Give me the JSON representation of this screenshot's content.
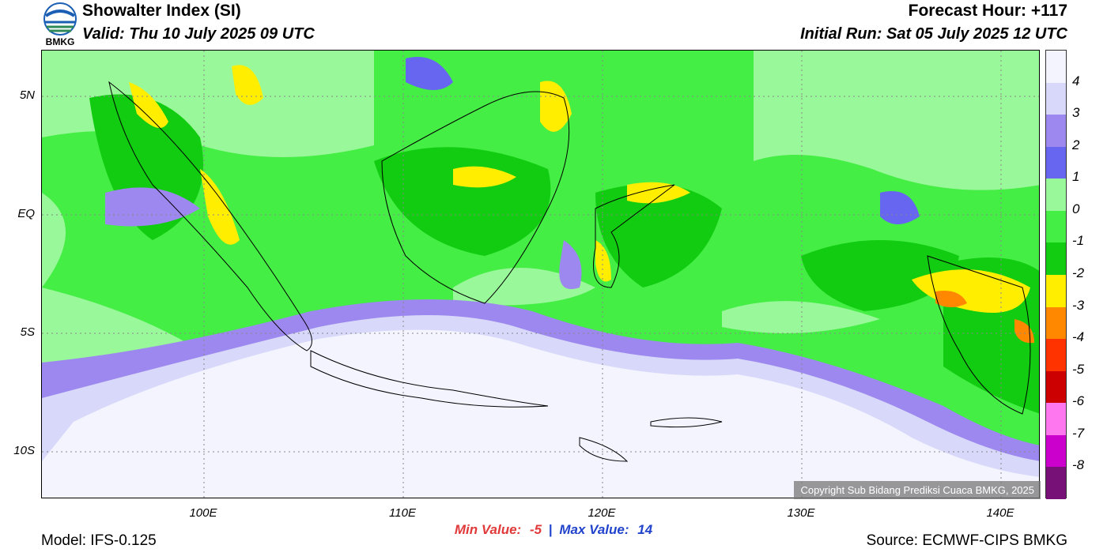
{
  "header": {
    "title": "Showalter Index (SI)",
    "valid": "Valid: Thu 10 July 2025 09 UTC",
    "forecast_hour": "Forecast Hour: +117",
    "initial_run": "Initial Run: Sat 05 July 2025 12 UTC",
    "logo_text": "BMKG"
  },
  "axes": {
    "lat_labels": [
      "5N",
      "EQ",
      "5S",
      "10S"
    ],
    "lon_labels": [
      "100E",
      "110E",
      "120E",
      "130E",
      "140E"
    ]
  },
  "colorbar": {
    "colors": [
      "#f4f4ff",
      "#d8d8fa",
      "#9c88ee",
      "#6666f0",
      "#99f899",
      "#44ee44",
      "#11cc11",
      "#ffee00",
      "#ff8800",
      "#ff3300",
      "#cc0000",
      "#ff77ee",
      "#cc00cc",
      "#771177"
    ],
    "labels": [
      "4",
      "3",
      "2",
      "1",
      "0",
      "-1",
      "-2",
      "-3",
      "-4",
      "-5",
      "-6",
      "-7",
      "-8"
    ]
  },
  "stats": {
    "min_label": "Min Value:",
    "min_value": "-5",
    "separator": "|",
    "max_label": "Max Value:",
    "max_value": "14"
  },
  "footer": {
    "model": "Model: IFS-0.125",
    "source": "Source: ECMWF-CIPS BMKG",
    "copyright": "Copyright Sub Bidang Prediksi Cuaca BMKG, 2025"
  }
}
